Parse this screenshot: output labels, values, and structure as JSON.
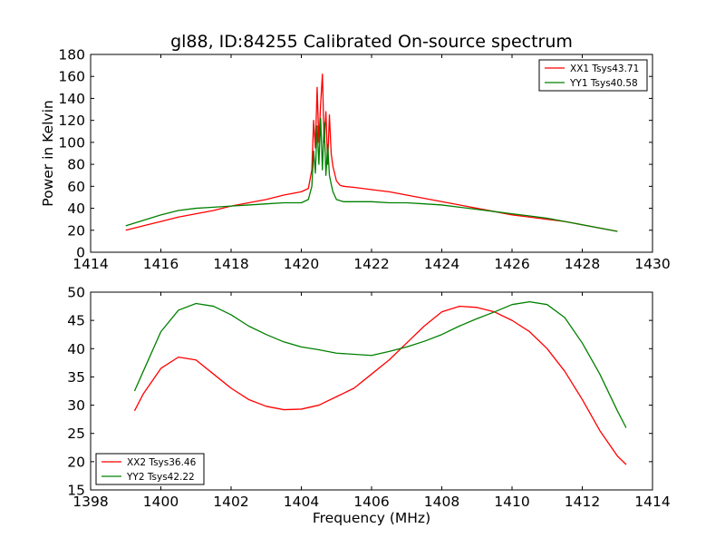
{
  "figure": {
    "title": "gl88, ID:84255 Calibrated On-source spectrum"
  },
  "chart_data": [
    {
      "type": "line",
      "title": "gl88, ID:84255 Calibrated On-source spectrum",
      "xlabel": "",
      "ylabel": "Power in Kelvin",
      "xlim": [
        1414,
        1430
      ],
      "ylim": [
        0,
        180
      ],
      "xticks": [
        "1414",
        "1416",
        "1418",
        "1420",
        "1422",
        "1424",
        "1426",
        "1428",
        "1430"
      ],
      "yticks": [
        "0",
        "20",
        "40",
        "60",
        "80",
        "100",
        "120",
        "140",
        "160",
        "180"
      ],
      "grid": false,
      "legend_position": "top-right",
      "series": [
        {
          "name": "XX1 Tsys43.71",
          "color": "#ff0000",
          "x": [
            1415.0,
            1415.5,
            1416.0,
            1416.5,
            1417.0,
            1417.5,
            1418.0,
            1418.5,
            1419.0,
            1419.5,
            1420.0,
            1420.2,
            1420.3,
            1420.35,
            1420.4,
            1420.45,
            1420.5,
            1420.55,
            1420.6,
            1420.65,
            1420.7,
            1420.75,
            1420.8,
            1420.85,
            1420.9,
            1421.0,
            1421.1,
            1421.2,
            1421.5,
            1422.0,
            1422.5,
            1423.0,
            1423.5,
            1424.0,
            1424.5,
            1425.0,
            1425.5,
            1426.0,
            1426.5,
            1427.0,
            1427.5,
            1428.0,
            1428.5,
            1429.0
          ],
          "y": [
            20,
            24,
            28,
            32,
            35,
            38,
            42,
            45,
            48,
            52,
            55,
            58,
            75,
            120,
            95,
            150,
            100,
            135,
            162,
            100,
            128,
            80,
            125,
            90,
            78,
            65,
            61,
            60,
            59,
            57,
            55,
            52,
            49,
            46,
            43,
            40,
            37,
            34,
            32,
            30,
            28,
            25,
            22,
            19
          ]
        },
        {
          "name": "YY1 Tsys40.58",
          "color": "#008000",
          "x": [
            1415.0,
            1415.5,
            1416.0,
            1416.5,
            1417.0,
            1417.5,
            1418.0,
            1418.5,
            1419.0,
            1419.5,
            1420.0,
            1420.2,
            1420.3,
            1420.35,
            1420.4,
            1420.45,
            1420.5,
            1420.55,
            1420.6,
            1420.65,
            1420.7,
            1420.75,
            1420.8,
            1420.85,
            1420.9,
            1421.0,
            1421.1,
            1421.2,
            1421.5,
            1422.0,
            1422.5,
            1423.0,
            1423.5,
            1424.0,
            1424.5,
            1425.0,
            1425.5,
            1426.0,
            1426.5,
            1427.0,
            1427.5,
            1428.0,
            1428.5,
            1429.0
          ],
          "y": [
            24,
            29,
            34,
            38,
            40,
            41,
            42,
            43,
            44,
            45,
            45,
            48,
            60,
            92,
            72,
            115,
            80,
            122,
            75,
            118,
            70,
            98,
            70,
            62,
            55,
            48,
            47,
            46,
            46,
            46,
            45,
            45,
            44,
            43,
            41,
            39,
            37,
            35,
            33,
            31,
            28,
            25,
            22,
            19
          ]
        }
      ]
    },
    {
      "type": "line",
      "title": "",
      "xlabel": "Frequency (MHz)",
      "ylabel": "",
      "xlim": [
        1398,
        1414
      ],
      "ylim": [
        15,
        50
      ],
      "xticks": [
        "1398",
        "1400",
        "1402",
        "1404",
        "1406",
        "1408",
        "1410",
        "1412",
        "1414"
      ],
      "yticks": [
        "15",
        "20",
        "25",
        "30",
        "35",
        "40",
        "45",
        "50"
      ],
      "grid": false,
      "legend_position": "bottom-left",
      "series": [
        {
          "name": "XX2 Tsys36.46",
          "color": "#ff0000",
          "x": [
            1399.25,
            1399.5,
            1400.0,
            1400.5,
            1401.0,
            1401.5,
            1402.0,
            1402.5,
            1403.0,
            1403.5,
            1404.0,
            1404.5,
            1405.0,
            1405.5,
            1406.0,
            1406.5,
            1407.0,
            1407.5,
            1408.0,
            1408.5,
            1409.0,
            1409.5,
            1410.0,
            1410.5,
            1411.0,
            1411.5,
            1412.0,
            1412.5,
            1413.0,
            1413.25
          ],
          "y": [
            29,
            32,
            36.5,
            38.5,
            38,
            35.5,
            33,
            31,
            29.8,
            29.2,
            29.3,
            30,
            31.5,
            33,
            35.5,
            38,
            41,
            44,
            46.5,
            47.5,
            47.3,
            46.5,
            45,
            43,
            40,
            36,
            31,
            25.5,
            21,
            19.5
          ]
        },
        {
          "name": "YY2 Tsys42.22",
          "color": "#008000",
          "x": [
            1399.25,
            1399.5,
            1400.0,
            1400.5,
            1401.0,
            1401.5,
            1402.0,
            1402.5,
            1403.0,
            1403.5,
            1404.0,
            1404.5,
            1405.0,
            1405.5,
            1406.0,
            1406.5,
            1407.0,
            1407.5,
            1408.0,
            1408.5,
            1409.0,
            1409.5,
            1410.0,
            1410.5,
            1411.0,
            1411.5,
            1412.0,
            1412.5,
            1413.0,
            1413.25
          ],
          "y": [
            32.5,
            36,
            43,
            46.8,
            48,
            47.5,
            46,
            44,
            42.5,
            41.2,
            40.3,
            39.8,
            39.2,
            39,
            38.8,
            39.5,
            40.3,
            41.3,
            42.5,
            44,
            45.3,
            46.5,
            47.8,
            48.3,
            47.8,
            45.5,
            41,
            35.5,
            29,
            26
          ]
        }
      ]
    }
  ]
}
